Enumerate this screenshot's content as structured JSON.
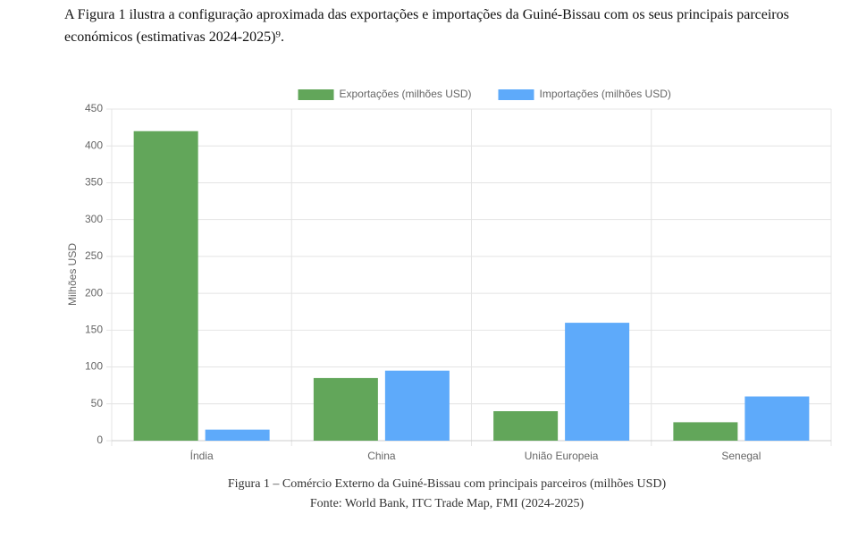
{
  "paragraph": "A Figura 1 ilustra a configuração aproximada das exportações e importações da Guiné-Bissau com os seus principais parceiros económicos (estimativas 2024-2025)⁹.",
  "chart_data": {
    "type": "bar",
    "y_label": "Milhões USD",
    "categories": [
      "Índia",
      "China",
      "União Europeia",
      "Senegal"
    ],
    "series": [
      {
        "name": "Exportações (milhões USD)",
        "color": "#62a65a",
        "values": [
          420,
          85,
          40,
          25
        ]
      },
      {
        "name": "Importações (milhões USD)",
        "color": "#5eaafa",
        "values": [
          15,
          95,
          160,
          60
        ]
      }
    ],
    "ylim": [
      0,
      450
    ],
    "yticks": [
      0,
      50,
      100,
      150,
      200,
      250,
      300,
      350,
      400,
      450
    ],
    "grid": true,
    "legend": "top"
  },
  "caption": [
    "Figura 1 – Comércio Externo da Guiné-Bissau com principais parceiros (milhões USD)",
    "Fonte: World Bank, ITC Trade Map, FMI (2024-2025)"
  ]
}
